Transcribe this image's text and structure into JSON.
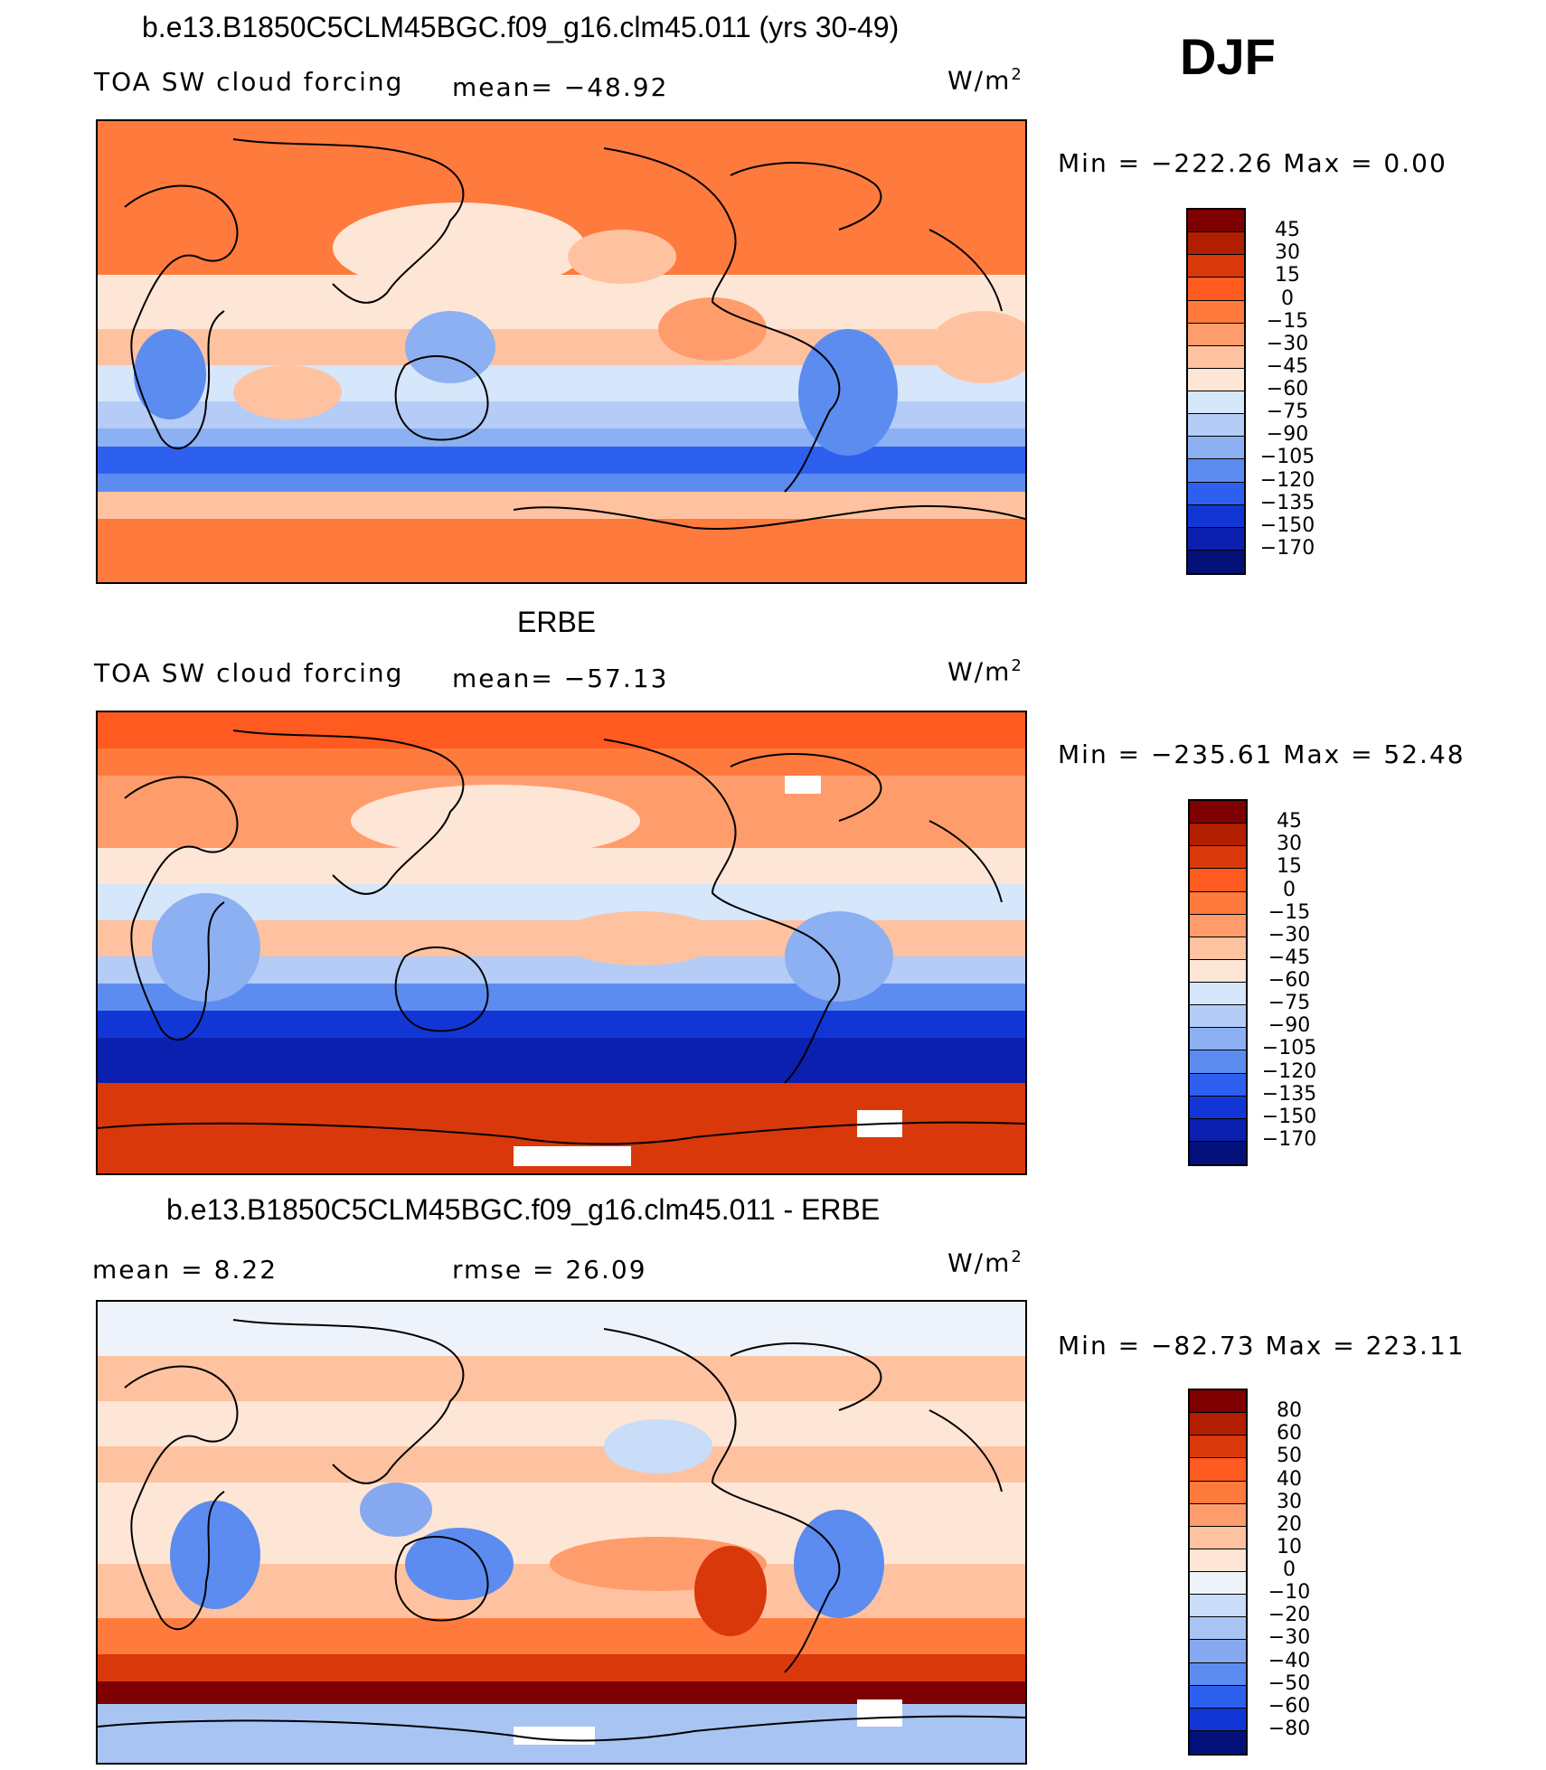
{
  "season": "DJF",
  "units": "W/m",
  "units_sup": "2",
  "panels": [
    {
      "title": "b.e13.B1850C5CLM45BGC.f09_g16.clm45.011 (yrs 30-49)",
      "variable": "TOA SW cloud forcing",
      "stat1": "mean=  −48.92",
      "minmax": "Min  =  −222.26  Max  =     0.00",
      "levels": [
        "45",
        "30",
        "15",
        "0",
        "−15",
        "−30",
        "−45",
        "−60",
        "−75",
        "−90",
        "−105",
        "−120",
        "−135",
        "−150",
        "−170"
      ]
    },
    {
      "title": "ERBE",
      "variable": "TOA SW cloud forcing",
      "stat1": "mean=  −57.13",
      "minmax": "Min  =  −235.61  Max  =   52.48",
      "levels": [
        "45",
        "30",
        "15",
        "0",
        "−15",
        "−30",
        "−45",
        "−60",
        "−75",
        "−90",
        "−105",
        "−120",
        "−135",
        "−150",
        "−170"
      ]
    },
    {
      "title": "b.e13.B1850C5CLM45BGC.f09_g16.clm45.011 - ERBE",
      "stat_mean": "mean  =     8.22",
      "stat_rmse": "rmse  =    26.09",
      "minmax": "Min  =  −82.73  Max  =  223.11",
      "levels": [
        "80",
        "60",
        "50",
        "40",
        "30",
        "20",
        "10",
        "0",
        "−10",
        "−20",
        "−30",
        "−40",
        "−50",
        "−60",
        "−80"
      ]
    }
  ],
  "colors": {
    "abs_scale": [
      "#7f0000",
      "#b21e00",
      "#d9380a",
      "#ff5a1f",
      "#ff7a3d",
      "#ff9c6b",
      "#ffc2a0",
      "#fde6d6",
      "#d6e6fb",
      "#b4ccf6",
      "#8cb0f2",
      "#5c8cf0",
      "#2e60f0",
      "#1236d6",
      "#0c20b0",
      "#04107a"
    ],
    "diff_scale": [
      "#7f0000",
      "#b21e00",
      "#d9380a",
      "#ff5a1f",
      "#ff7a3d",
      "#ff9c6b",
      "#ffc2a0",
      "#fde6d6",
      "#eef3fb",
      "#c9dcf8",
      "#a8c4f3",
      "#86a8f0",
      "#5c8cf0",
      "#2e60f0",
      "#1236d6",
      "#04107a"
    ]
  }
}
